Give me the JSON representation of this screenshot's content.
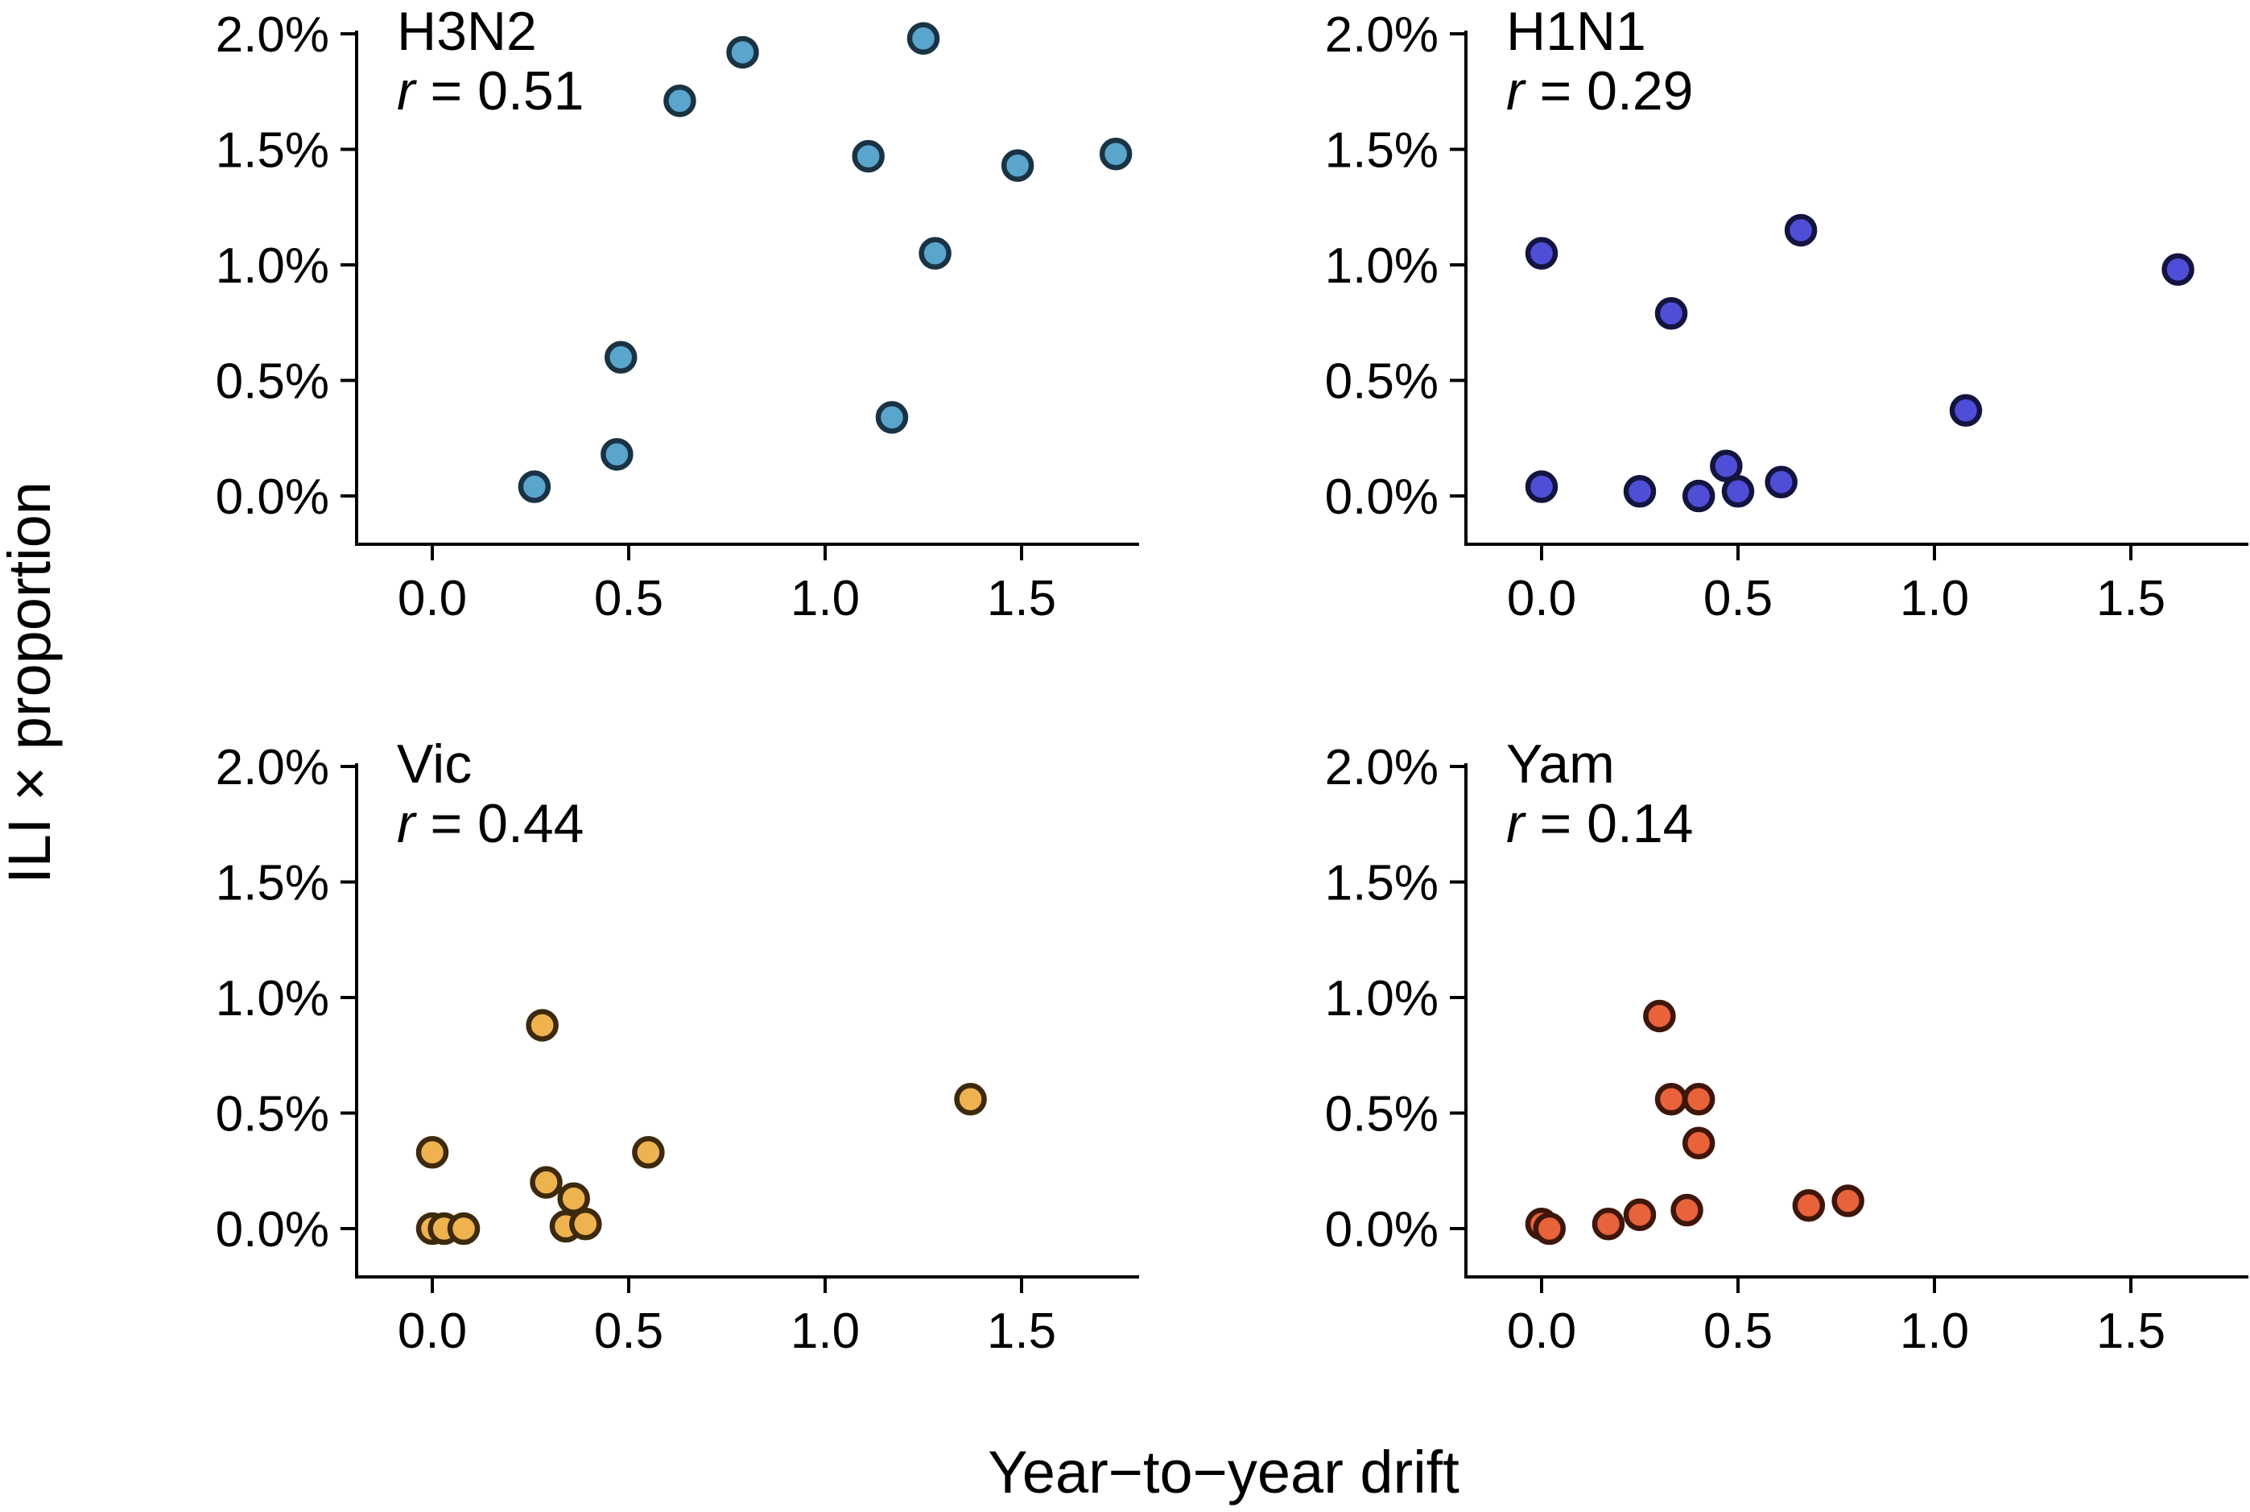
{
  "chart_data": {
    "type": "scatter",
    "xlabel": "Year−to−year drift",
    "ylabel": "ILI × proportion",
    "xlim": [
      -0.2,
      1.8
    ],
    "ylim": [
      -0.2,
      2.0
    ],
    "x_ticks": [
      0.0,
      0.5,
      1.0,
      1.5
    ],
    "x_tick_labels": [
      "0.0",
      "0.5",
      "1.0",
      "1.5"
    ],
    "y_ticks": [
      0.0,
      0.5,
      1.0,
      1.5,
      2.0
    ],
    "y_tick_labels": [
      "0.0%",
      "0.5%",
      "1.0%",
      "1.5%",
      "2.0%"
    ],
    "grid": false,
    "legend": "none",
    "panels": [
      {
        "name": "H3N2",
        "r_symbol": "r",
        "r_text": " = 0.51",
        "fill": "#5aa5cc",
        "stroke": "#1a3344",
        "points": [
          {
            "x": 0.26,
            "y": 0.04
          },
          {
            "x": 0.47,
            "y": 0.18
          },
          {
            "x": 0.48,
            "y": 0.6
          },
          {
            "x": 0.63,
            "y": 1.71
          },
          {
            "x": 0.79,
            "y": 1.92
          },
          {
            "x": 1.11,
            "y": 1.47
          },
          {
            "x": 1.17,
            "y": 0.34
          },
          {
            "x": 1.25,
            "y": 1.98
          },
          {
            "x": 1.28,
            "y": 1.05
          },
          {
            "x": 1.49,
            "y": 1.43
          },
          {
            "x": 1.74,
            "y": 1.48
          }
        ]
      },
      {
        "name": "H1N1",
        "r_symbol": "r",
        "r_text": " = 0.29",
        "fill": "#4f4ed6",
        "stroke": "#141440",
        "points": [
          {
            "x": 0.0,
            "y": 1.05
          },
          {
            "x": 0.0,
            "y": 0.04
          },
          {
            "x": 0.25,
            "y": 0.02
          },
          {
            "x": 0.33,
            "y": 0.79
          },
          {
            "x": 0.4,
            "y": 0.0
          },
          {
            "x": 0.47,
            "y": 0.13
          },
          {
            "x": 0.5,
            "y": 0.02
          },
          {
            "x": 0.61,
            "y": 0.06
          },
          {
            "x": 0.66,
            "y": 1.15
          },
          {
            "x": 1.08,
            "y": 0.37
          },
          {
            "x": 1.62,
            "y": 0.98
          }
        ]
      },
      {
        "name": "Vic",
        "r_symbol": "r",
        "r_text": " = 0.44",
        "fill": "#eeb24e",
        "stroke": "#3d2a0c",
        "points": [
          {
            "x": 0.0,
            "y": 0.33
          },
          {
            "x": 0.0,
            "y": 0.0
          },
          {
            "x": 0.03,
            "y": 0.0
          },
          {
            "x": 0.08,
            "y": 0.0
          },
          {
            "x": 0.28,
            "y": 0.88
          },
          {
            "x": 0.29,
            "y": 0.2
          },
          {
            "x": 0.34,
            "y": 0.01
          },
          {
            "x": 0.36,
            "y": 0.13
          },
          {
            "x": 0.39,
            "y": 0.02
          },
          {
            "x": 0.55,
            "y": 0.33
          },
          {
            "x": 1.37,
            "y": 0.56
          }
        ]
      },
      {
        "name": "Yam",
        "r_symbol": "r",
        "r_text": " = 0.14",
        "fill": "#e8623a",
        "stroke": "#3f160a",
        "points": [
          {
            "x": 0.0,
            "y": 0.02
          },
          {
            "x": 0.02,
            "y": 0.0
          },
          {
            "x": 0.17,
            "y": 0.02
          },
          {
            "x": 0.25,
            "y": 0.06
          },
          {
            "x": 0.3,
            "y": 0.92
          },
          {
            "x": 0.33,
            "y": 0.56
          },
          {
            "x": 0.37,
            "y": 0.08
          },
          {
            "x": 0.4,
            "y": 0.56
          },
          {
            "x": 0.4,
            "y": 0.37
          },
          {
            "x": 0.68,
            "y": 0.1
          },
          {
            "x": 0.78,
            "y": 0.12
          }
        ]
      }
    ]
  }
}
